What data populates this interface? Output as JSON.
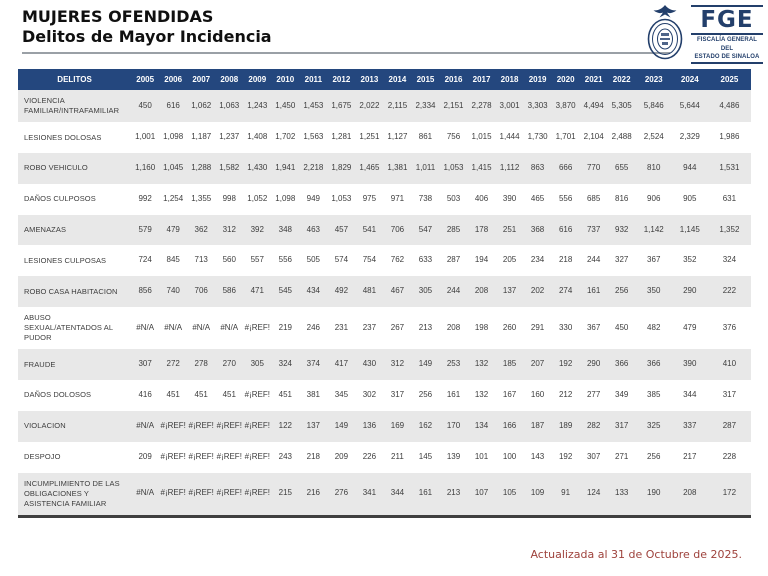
{
  "header": {
    "title_line1": "MUJERES OFENDIDAS",
    "title_line2": "Delitos de Mayor Incidencia"
  },
  "logo": {
    "acronym": "FGE",
    "org_line1": "FISCALÍA GENERAL DEL",
    "org_line2": "ESTADO DE SINALOA"
  },
  "footer": {
    "updated_text": "Actualizada al 31 de Octubre de 2025."
  },
  "colors": {
    "header_bg": "#24477E",
    "header_text": "#FFFFFF",
    "row_stripe": "#E8E8E8",
    "logo_navy": "#233F6B",
    "footer_red": "#9E423C",
    "table_bottom_border": "#3F3F3F"
  },
  "chart_data": {
    "type": "table",
    "title": "MUJERES OFENDIDAS - Delitos de Mayor Incidencia",
    "first_column_header": "DELITOS",
    "years": [
      "2005",
      "2006",
      "2007",
      "2008",
      "2009",
      "2010",
      "2011",
      "2012",
      "2013",
      "2014",
      "2015",
      "2016",
      "2017",
      "2018",
      "2019",
      "2020",
      "2021",
      "2022",
      "2023",
      "2024",
      "2025"
    ],
    "rows": [
      {
        "delito": "VIOLENCIA FAMILIAR/INTRAFAMILIAR",
        "values": [
          "450",
          "616",
          "1,062",
          "1,063",
          "1,243",
          "1,450",
          "1,453",
          "1,675",
          "2,022",
          "2,115",
          "2,334",
          "2,151",
          "2,278",
          "3,001",
          "3,303",
          "3,870",
          "4,494",
          "5,305",
          "5,846",
          "5,644",
          "4,486"
        ]
      },
      {
        "delito": "LESIONES DOLOSAS",
        "values": [
          "1,001",
          "1,098",
          "1,187",
          "1,237",
          "1,408",
          "1,702",
          "1,563",
          "1,281",
          "1,251",
          "1,127",
          "861",
          "756",
          "1,015",
          "1,444",
          "1,730",
          "1,701",
          "2,104",
          "2,488",
          "2,524",
          "2,329",
          "1,986"
        ]
      },
      {
        "delito": "ROBO VEHICULO",
        "values": [
          "1,160",
          "1,045",
          "1,288",
          "1,582",
          "1,430",
          "1,941",
          "2,218",
          "1,829",
          "1,465",
          "1,381",
          "1,011",
          "1,053",
          "1,415",
          "1,112",
          "863",
          "666",
          "770",
          "655",
          "810",
          "944",
          "1,531"
        ]
      },
      {
        "delito": "DAÑOS CULPOSOS",
        "values": [
          "992",
          "1,254",
          "1,355",
          "998",
          "1,052",
          "1,098",
          "949",
          "1,053",
          "975",
          "971",
          "738",
          "503",
          "406",
          "390",
          "465",
          "556",
          "685",
          "816",
          "906",
          "905",
          "631"
        ]
      },
      {
        "delito": "AMENAZAS",
        "values": [
          "579",
          "479",
          "362",
          "312",
          "392",
          "348",
          "463",
          "457",
          "541",
          "706",
          "547",
          "285",
          "178",
          "251",
          "368",
          "616",
          "737",
          "932",
          "1,142",
          "1,145",
          "1,352"
        ]
      },
      {
        "delito": "LESIONES CULPOSAS",
        "values": [
          "724",
          "845",
          "713",
          "560",
          "557",
          "556",
          "505",
          "574",
          "754",
          "762",
          "633",
          "287",
          "194",
          "205",
          "234",
          "218",
          "244",
          "327",
          "367",
          "352",
          "324"
        ]
      },
      {
        "delito": "ROBO CASA HABITACION",
        "values": [
          "856",
          "740",
          "706",
          "586",
          "471",
          "545",
          "434",
          "492",
          "481",
          "467",
          "305",
          "244",
          "208",
          "137",
          "202",
          "274",
          "161",
          "256",
          "350",
          "290",
          "222"
        ]
      },
      {
        "delito": "ABUSO SEXUAL/ATENTADOS AL PUDOR",
        "values": [
          "#N/A",
          "#N/A",
          "#N/A",
          "#N/A",
          "#¡REF!",
          "219",
          "246",
          "231",
          "237",
          "267",
          "213",
          "208",
          "198",
          "260",
          "291",
          "330",
          "367",
          "450",
          "482",
          "479",
          "376"
        ]
      },
      {
        "delito": "FRAUDE",
        "values": [
          "307",
          "272",
          "278",
          "270",
          "305",
          "324",
          "374",
          "417",
          "430",
          "312",
          "149",
          "253",
          "132",
          "185",
          "207",
          "192",
          "290",
          "366",
          "366",
          "390",
          "410"
        ]
      },
      {
        "delito": "DAÑOS DOLOSOS",
        "values": [
          "416",
          "451",
          "451",
          "451",
          "#¡REF!",
          "451",
          "381",
          "345",
          "302",
          "317",
          "256",
          "161",
          "132",
          "167",
          "160",
          "212",
          "277",
          "349",
          "385",
          "344",
          "317"
        ]
      },
      {
        "delito": "VIOLACION",
        "values": [
          "#N/A",
          "#¡REF!",
          "#¡REF!",
          "#¡REF!",
          "#¡REF!",
          "122",
          "137",
          "149",
          "136",
          "169",
          "162",
          "170",
          "134",
          "166",
          "187",
          "189",
          "282",
          "317",
          "325",
          "337",
          "287"
        ]
      },
      {
        "delito": "DESPOJO",
        "values": [
          "209",
          "#¡REF!",
          "#¡REF!",
          "#¡REF!",
          "#¡REF!",
          "243",
          "218",
          "209",
          "226",
          "211",
          "145",
          "139",
          "101",
          "100",
          "143",
          "192",
          "307",
          "271",
          "256",
          "217",
          "228"
        ]
      },
      {
        "delito": "INCUMPLIMIENTO DE LAS OBLIGACIONES Y ASISTENCIA FAMILIAR",
        "values": [
          "#N/A",
          "#¡REF!",
          "#¡REF!",
          "#¡REF!",
          "#¡REF!",
          "215",
          "216",
          "276",
          "341",
          "344",
          "161",
          "213",
          "107",
          "105",
          "109",
          "91",
          "124",
          "133",
          "190",
          "208",
          "172"
        ]
      }
    ]
  }
}
